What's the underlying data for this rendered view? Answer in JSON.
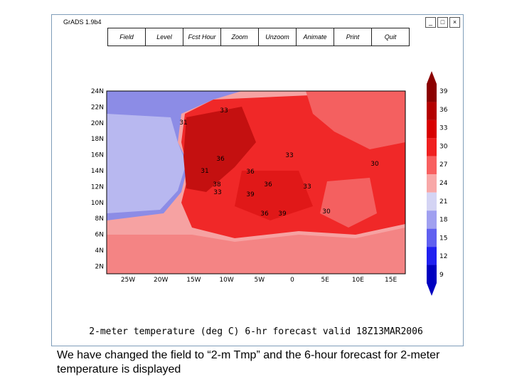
{
  "window": {
    "title": "GrADS 1.9b4",
    "menu": [
      "Field",
      "Level",
      "Fcst Hour",
      "Zoom",
      "Unzoom",
      "Animate",
      "Print",
      "Quit"
    ]
  },
  "map": {
    "lat_labels": [
      "24N",
      "22N",
      "20N",
      "18N",
      "16N",
      "14N",
      "12N",
      "10N",
      "8N",
      "6N",
      "4N",
      "2N"
    ],
    "lon_labels": [
      "25W",
      "20W",
      "15W",
      "10W",
      "5W",
      "0",
      "5E",
      "10E",
      "15E"
    ],
    "contour_labels": [
      "33",
      "31",
      "36",
      "33",
      "31",
      "36",
      "38",
      "36",
      "33",
      "39",
      "33",
      "30",
      "30",
      "39",
      "36"
    ],
    "colorbar_labels": [
      "39",
      "36",
      "33",
      "30",
      "27",
      "24",
      "21",
      "18",
      "15",
      "12",
      "9"
    ],
    "caption": "2-meter temperature (deg C) 6-hr forecast valid 18Z13MAR2006"
  },
  "slide_text": "We have changed the field to “2-m Tmp” and the 6-hour forecast for 2-meter temperature is displayed"
}
